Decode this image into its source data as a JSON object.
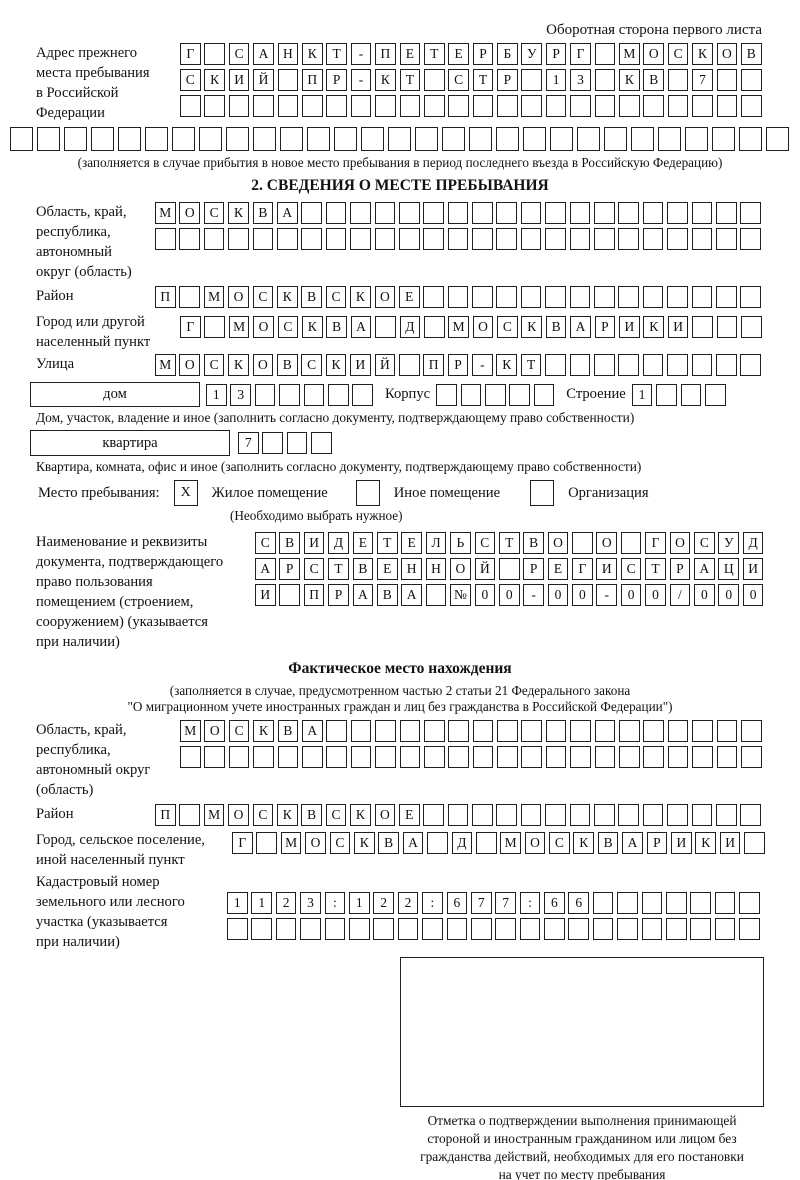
{
  "page": {
    "header": "Оборотная сторона первого листа"
  },
  "prev_address": {
    "label": "Адрес прежнего\nместа пребывания\nв Российской\nФедерации",
    "row1": [
      "Г",
      "",
      "С",
      "А",
      "Н",
      "К",
      "Т",
      "-",
      "П",
      "Е",
      "Т",
      "Е",
      "Р",
      "Б",
      "У",
      "Р",
      "Г",
      "",
      "М",
      "О",
      "С",
      "К",
      "О",
      "В"
    ],
    "row2": [
      "С",
      "К",
      "И",
      "Й",
      "",
      "П",
      "Р",
      "-",
      "К",
      "Т",
      "",
      "С",
      "Т",
      "Р",
      "",
      "1",
      "3",
      "",
      "К",
      "В",
      "",
      "7",
      "",
      ""
    ],
    "row3": [
      "",
      "",
      "",
      "",
      "",
      "",
      "",
      "",
      "",
      "",
      "",
      "",
      "",
      "",
      "",
      "",
      "",
      "",
      "",
      "",
      "",
      "",
      "",
      ""
    ],
    "row4": [
      "",
      "",
      "",
      "",
      "",
      "",
      "",
      "",
      "",
      "",
      "",
      "",
      "",
      "",
      "",
      "",
      "",
      "",
      "",
      "",
      "",
      "",
      "",
      "",
      "",
      "",
      "",
      "",
      ""
    ],
    "note": "(заполняется в случае прибытия в новое место пребывания в период последнего въезда в Российскую Федерацию)"
  },
  "section2": {
    "title": "2. СВЕДЕНИЯ О МЕСТЕ ПРЕБЫВАНИЯ",
    "oblast": {
      "label": "Область, край,\nреспублика,\nавтономный\nокруг (область)",
      "row1": [
        "М",
        "О",
        "С",
        "К",
        "В",
        "А",
        "",
        "",
        "",
        "",
        "",
        "",
        "",
        "",
        "",
        "",
        "",
        "",
        "",
        "",
        "",
        "",
        "",
        "",
        ""
      ],
      "row2": [
        "",
        "",
        "",
        "",
        "",
        "",
        "",
        "",
        "",
        "",
        "",
        "",
        "",
        "",
        "",
        "",
        "",
        "",
        "",
        "",
        "",
        "",
        "",
        "",
        ""
      ]
    },
    "rayon": {
      "label": "Район",
      "cells": [
        "П",
        "",
        "М",
        "О",
        "С",
        "К",
        "В",
        "С",
        "К",
        "О",
        "Е",
        "",
        "",
        "",
        "",
        "",
        "",
        "",
        "",
        "",
        "",
        "",
        "",
        "",
        ""
      ]
    },
    "gorod": {
      "label": "Город или другой\nнаселенный пункт",
      "cells": [
        "Г",
        "",
        "М",
        "О",
        "С",
        "К",
        "В",
        "А",
        "",
        "Д",
        "",
        "М",
        "О",
        "С",
        "К",
        "В",
        "А",
        "Р",
        "И",
        "К",
        "И",
        "",
        "",
        ""
      ]
    },
    "ulitsa": {
      "label": "Улица",
      "cells": [
        "М",
        "О",
        "С",
        "К",
        "О",
        "В",
        "С",
        "К",
        "И",
        "Й",
        "",
        "П",
        "Р",
        "-",
        "К",
        "Т",
        "",
        "",
        "",
        "",
        "",
        "",
        "",
        "",
        ""
      ]
    },
    "dom": {
      "box_label": "дом",
      "cells": [
        "1",
        "3",
        "",
        "",
        "",
        "",
        ""
      ],
      "korpus_label": "Корпус",
      "korpus_cells": [
        "",
        "",
        "",
        "",
        ""
      ],
      "stroenie_label": "Строение",
      "stroenie_cells": [
        "1",
        "",
        "",
        ""
      ],
      "caption": "Дом, участок, владение и иное (заполнить согласно документу, подтверждающему право собственности)"
    },
    "kvartira": {
      "box_label": "квартира",
      "cells": [
        "7",
        "",
        "",
        ""
      ],
      "caption": "Квартира, комната, офис и иное (заполнить согласно документу, подтверждающему право собственности)"
    },
    "mesto": {
      "label": "Место пребывания:",
      "options": [
        {
          "name": "Жилое помещение",
          "mark": "X"
        },
        {
          "name": "Иное помещение",
          "mark": ""
        },
        {
          "name": "Организация",
          "mark": ""
        }
      ],
      "note": "(Необходимо выбрать нужное)"
    }
  },
  "document": {
    "label": "Наименование и реквизиты\nдокумента, подтверждающего\nправо пользования\nпомещением (строением,\nсооружением) (указывается\nпри наличии)",
    "row1": [
      "С",
      "В",
      "И",
      "Д",
      "Е",
      "Т",
      "Е",
      "Л",
      "Ь",
      "С",
      "Т",
      "В",
      "О",
      "",
      "О",
      "",
      "Г",
      "О",
      "С",
      "У",
      "Д"
    ],
    "row2": [
      "А",
      "Р",
      "С",
      "Т",
      "В",
      "Е",
      "Н",
      "Н",
      "О",
      "Й",
      "",
      "Р",
      "Е",
      "Г",
      "И",
      "С",
      "Т",
      "Р",
      "А",
      "Ц",
      "И"
    ],
    "row3": [
      "И",
      "",
      "П",
      "Р",
      "А",
      "В",
      "А",
      "",
      "№",
      "0",
      "0",
      "-",
      "0",
      "0",
      "-",
      "0",
      "0",
      "/",
      "0",
      "0",
      "0"
    ]
  },
  "fact": {
    "title": "Фактическое место нахождения",
    "note1": "(заполняется в случае, предусмотренном частью 2 статьи 21 Федерального закона",
    "note2": "\"О миграционном учете иностранных граждан и лиц без гражданства в Российской Федерации\")",
    "oblast": {
      "label": "Область, край,\nреспублика,\nавтономный округ\n(область)",
      "row1": [
        "М",
        "О",
        "С",
        "К",
        "В",
        "А",
        "",
        "",
        "",
        "",
        "",
        "",
        "",
        "",
        "",
        "",
        "",
        "",
        "",
        "",
        "",
        "",
        "",
        ""
      ],
      "row2": [
        "",
        "",
        "",
        "",
        "",
        "",
        "",
        "",
        "",
        "",
        "",
        "",
        "",
        "",
        "",
        "",
        "",
        "",
        "",
        "",
        "",
        "",
        "",
        ""
      ]
    },
    "rayon": {
      "label": "Район",
      "cells": [
        "П",
        "",
        "М",
        "О",
        "С",
        "К",
        "В",
        "С",
        "К",
        "О",
        "Е",
        "",
        "",
        "",
        "",
        "",
        "",
        "",
        "",
        "",
        "",
        "",
        "",
        "",
        ""
      ]
    },
    "gorod": {
      "label": "Город, сельское поселение,\nиной населенный пункт",
      "cells": [
        "Г",
        "",
        "М",
        "О",
        "С",
        "К",
        "В",
        "А",
        "",
        "Д",
        "",
        "М",
        "О",
        "С",
        "К",
        "В",
        "А",
        "Р",
        "И",
        "К",
        "И",
        ""
      ]
    },
    "kadastr": {
      "label": "Кадастровый номер\nземельного или лесного\nучастка (указывается\nпри наличии)",
      "row1": [
        "1",
        "1",
        "2",
        "3",
        ":",
        "1",
        "2",
        "2",
        ":",
        "6",
        "7",
        "7",
        ":",
        "6",
        "6",
        "",
        "",
        "",
        "",
        "",
        "",
        ""
      ],
      "row2": [
        "",
        "",
        "",
        "",
        "",
        "",
        "",
        "",
        "",
        "",
        "",
        "",
        "",
        "",
        "",
        "",
        "",
        "",
        "",
        "",
        "",
        ""
      ]
    }
  },
  "stamp": {
    "caption": "Отметка о подтверждении выполнения принимающей\nстороной и иностранным гражданином или лицом без\nгражданства действий, необходимых для его постановки\nна учет по месту пребывания"
  }
}
